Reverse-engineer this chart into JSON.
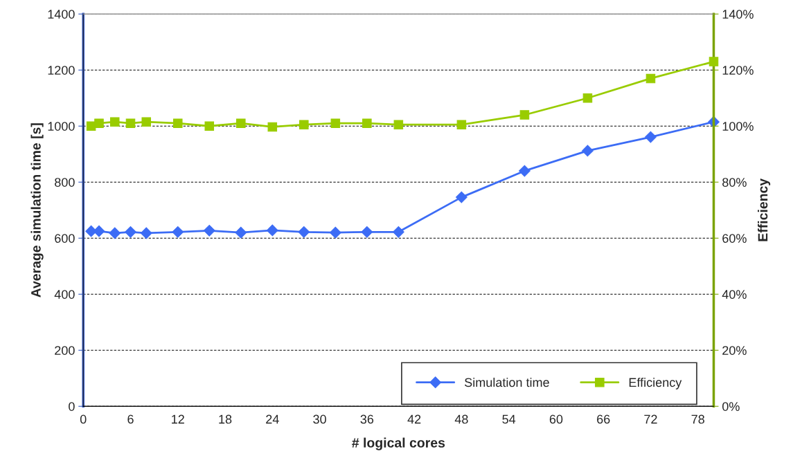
{
  "chart_data": {
    "type": "line",
    "xlabel": "# logical cores",
    "ylabel": "Average simulation time [s]",
    "y2label": "Efficiency",
    "x": [
      1,
      2,
      4,
      6,
      8,
      12,
      16,
      20,
      24,
      28,
      32,
      36,
      40,
      48,
      56,
      64,
      72,
      80
    ],
    "series": [
      {
        "name": "Simulation time",
        "color": "#3c6cf5",
        "marker": "diamond",
        "values": [
          625,
          625,
          618,
          622,
          618,
          622,
          627,
          620,
          628,
          622,
          620,
          622,
          622,
          746,
          840,
          912,
          961,
          1015
        ]
      },
      {
        "name": "Efficiency",
        "color": "#99cc00",
        "marker": "square",
        "axis": "y2",
        "values": [
          100,
          101,
          101.5,
          101,
          101.5,
          101,
          100,
          101,
          99.7,
          100.5,
          101,
          101,
          100.5,
          100.5,
          104,
          110,
          117,
          123
        ]
      }
    ],
    "xlim": [
      0,
      80
    ],
    "xticks": [
      0,
      6,
      12,
      18,
      24,
      30,
      36,
      42,
      48,
      54,
      60,
      66,
      72,
      78
    ],
    "ylim": [
      0,
      1400
    ],
    "yticks": [
      0,
      200,
      400,
      600,
      800,
      1000,
      1200,
      1400
    ],
    "y2lim": [
      0,
      140
    ],
    "y2ticks": [
      {
        "value": 0,
        "label": "0%"
      },
      {
        "value": 20,
        "label": "20%"
      },
      {
        "value": 40,
        "label": "40%"
      },
      {
        "value": 60,
        "label": "60%"
      },
      {
        "value": 80,
        "label": "80%"
      },
      {
        "value": 100,
        "label": "100%"
      },
      {
        "value": 120,
        "label": "120%"
      },
      {
        "value": 140,
        "label": "140%"
      }
    ],
    "grid": "y",
    "legend": "bottom right",
    "line_style": "solid"
  }
}
